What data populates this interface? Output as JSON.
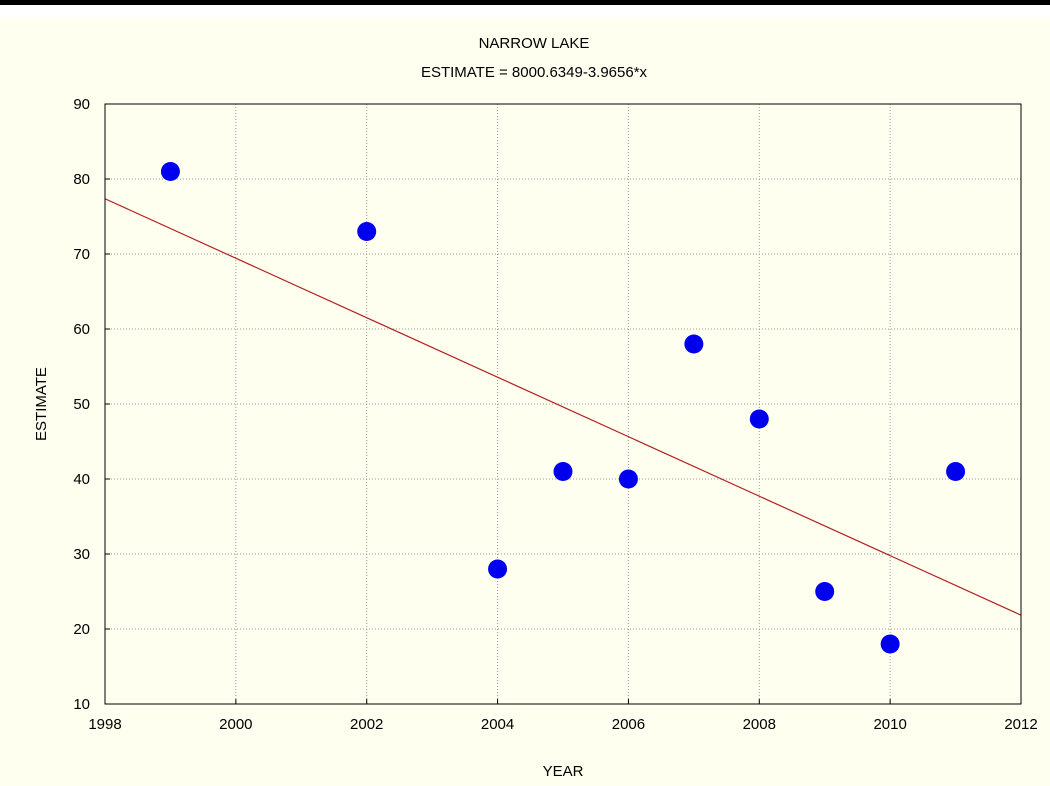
{
  "chart_data": {
    "type": "scatter",
    "title": "NARROW LAKE",
    "subtitle": "ESTIMATE = 8000.6349-3.9656*x",
    "xlabel": "YEAR",
    "ylabel": "ESTIMATE",
    "xlim": [
      1998,
      2012
    ],
    "ylim": [
      10,
      90
    ],
    "xticks": [
      1998,
      2000,
      2002,
      2004,
      2006,
      2008,
      2010,
      2012
    ],
    "yticks": [
      10,
      20,
      30,
      40,
      50,
      60,
      70,
      80,
      90
    ],
    "grid": true,
    "points": [
      {
        "x": 1999,
        "y": 81
      },
      {
        "x": 2002,
        "y": 73
      },
      {
        "x": 2004,
        "y": 28
      },
      {
        "x": 2005,
        "y": 41
      },
      {
        "x": 2006,
        "y": 40
      },
      {
        "x": 2007,
        "y": 58
      },
      {
        "x": 2008,
        "y": 48
      },
      {
        "x": 2009,
        "y": 25
      },
      {
        "x": 2010,
        "y": 18
      },
      {
        "x": 2011,
        "y": 41
      }
    ],
    "fit_line": {
      "intercept": 8000.6349,
      "slope": -3.9656
    },
    "colors": {
      "points": "#0000ee",
      "fit_line": "#b22222",
      "background": "#fffff0",
      "grid": "#9a9a9a"
    }
  }
}
